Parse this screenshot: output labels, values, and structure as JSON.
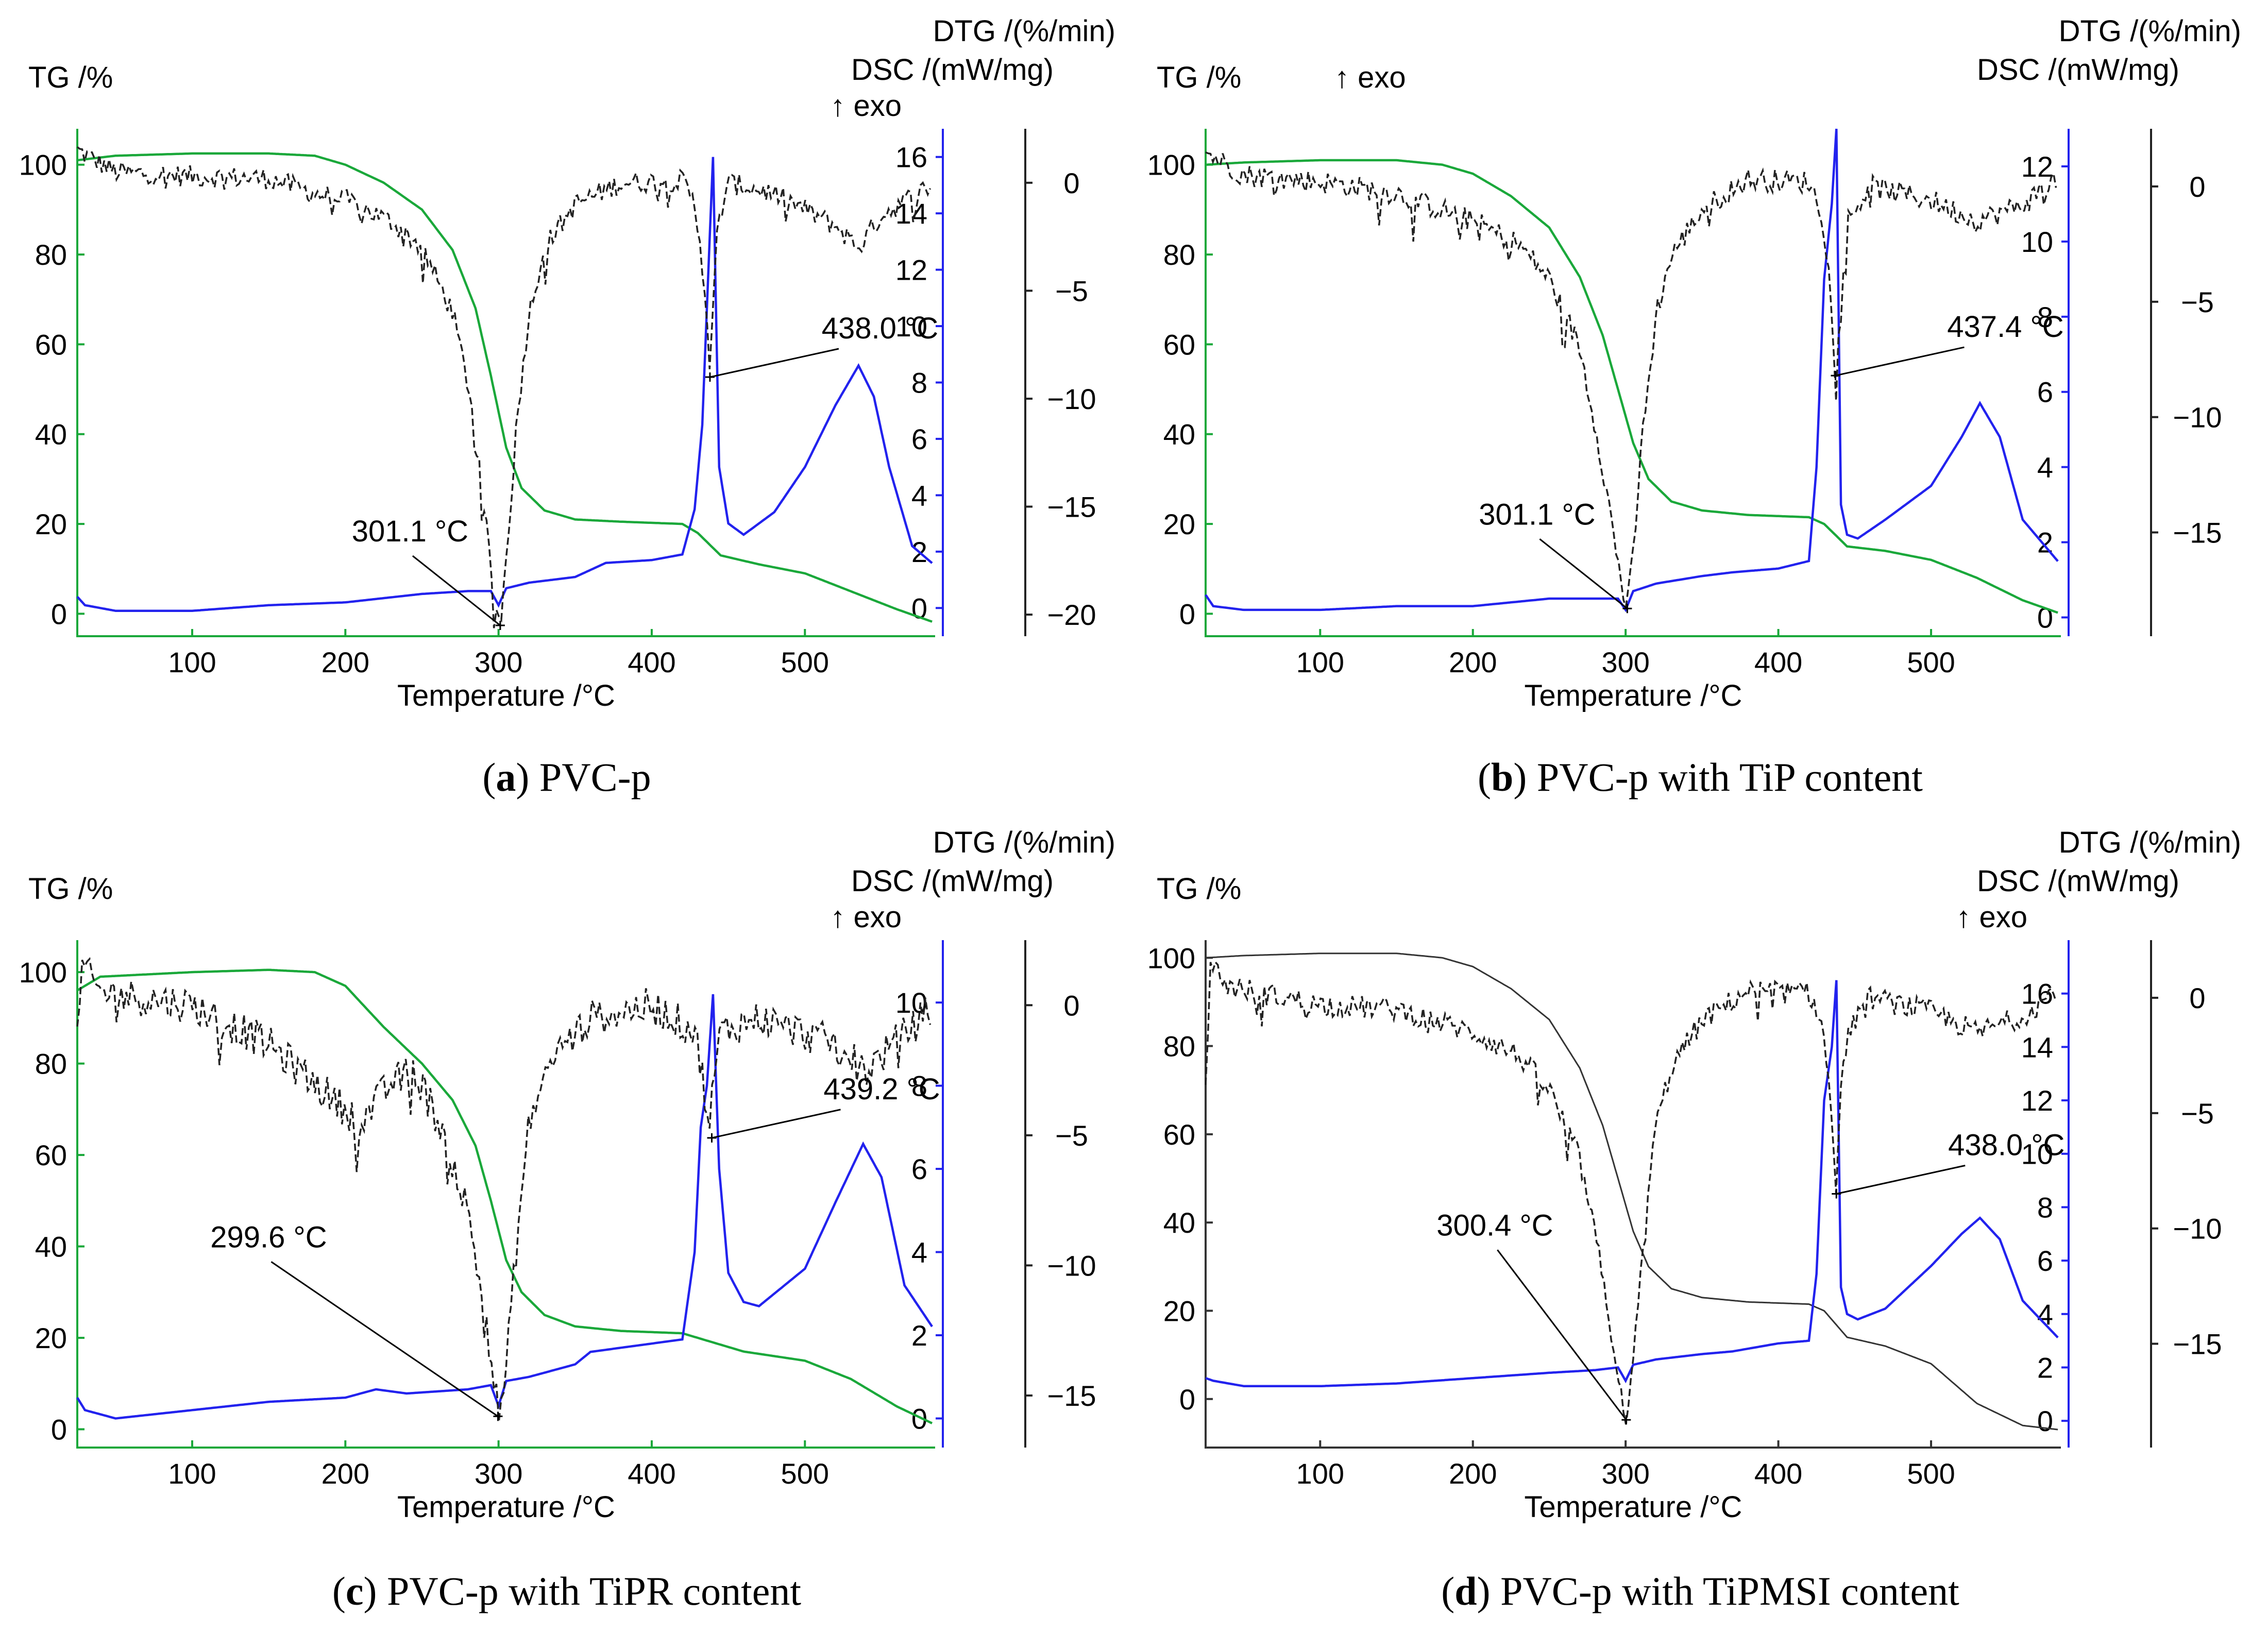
{
  "figure": {
    "panels_meta": "four thermal analysis panels"
  },
  "chart_data": [
    {
      "id": "a",
      "type": "line",
      "caption_letter": "a",
      "caption_text": "PVC-p",
      "title_tg": "TG /%",
      "title_dtg": "DTG /(%/min)",
      "title_dsc": "DSC /(mW/mg)",
      "exo_label": "↑ exo",
      "xlabel": "Temperature /°C",
      "xlim": [
        25,
        585
      ],
      "x_ticks": [
        100,
        200,
        300,
        400,
        500
      ],
      "tg_axis": {
        "ylim": [
          -5,
          108
        ],
        "ticks": [
          0,
          20,
          40,
          60,
          80,
          100
        ]
      },
      "dsc_axis": {
        "ylim": [
          -1,
          17
        ],
        "ticks": [
          0,
          2,
          4,
          6,
          8,
          10,
          12,
          14,
          16
        ]
      },
      "dtg_axis": {
        "ylim": [
          -21,
          2.5
        ],
        "ticks": [
          0,
          -5,
          -10,
          -15,
          -20
        ]
      },
      "tg_color": "#1aa83a",
      "series": [
        {
          "name": "TG",
          "axis": "tg",
          "color": "#1aa83a",
          "style": "solid",
          "x": [
            25,
            50,
            100,
            150,
            180,
            200,
            225,
            250,
            270,
            285,
            295,
            305,
            315,
            330,
            350,
            380,
            420,
            430,
            445,
            470,
            500,
            530,
            560,
            585
          ],
          "y": [
            101,
            102,
            102.5,
            102.5,
            102,
            100,
            96,
            90,
            81,
            68,
            53,
            37,
            28,
            23,
            21,
            20.5,
            20,
            18,
            13,
            11,
            9,
            5,
            1,
            -2
          ]
        },
        {
          "name": "DSC",
          "axis": "dsc",
          "color": "#2222ee",
          "style": "solid",
          "x": [
            25,
            30,
            50,
            100,
            150,
            200,
            250,
            280,
            295,
            300,
            305,
            320,
            350,
            370,
            400,
            420,
            428,
            433,
            437,
            440,
            444,
            450,
            460,
            480,
            500,
            520,
            535,
            545,
            555,
            570,
            585
          ],
          "y": [
            0.4,
            0.1,
            -0.1,
            -0.1,
            0.1,
            0.2,
            0.5,
            0.6,
            0.6,
            0.1,
            0.7,
            0.9,
            1.1,
            1.6,
            1.7,
            1.9,
            3.5,
            6.5,
            12,
            16,
            5,
            3.0,
            2.6,
            3.4,
            5.0,
            7.2,
            8.6,
            7.5,
            5.0,
            2.2,
            1.5
          ]
        },
        {
          "name": "DTG",
          "axis": "dtg",
          "color": "#222222",
          "style": "dashed",
          "noise": 0.5,
          "x": [
            25,
            50,
            100,
            150,
            180,
            200,
            230,
            250,
            270,
            282,
            292,
            298,
            301,
            305,
            312,
            320,
            330,
            350,
            380,
            420,
            428,
            432,
            436,
            438,
            440,
            443,
            450,
            480,
            520,
            535,
            550,
            585
          ],
          "y": [
            1.5,
            0.5,
            0.3,
            0.2,
            -0.5,
            -0.8,
            -1.8,
            -3,
            -6,
            -10,
            -16,
            -19.5,
            -20.5,
            -17.5,
            -11,
            -6,
            -3,
            -1,
            0,
            0.1,
            -1,
            -3,
            -6,
            -9,
            -6,
            -2,
            0,
            -0.5,
            -2,
            -3,
            -1.5,
            0
          ]
        }
      ],
      "annotations": [
        {
          "text": "301.1 °C",
          "x": 301.1,
          "axis": "dtg",
          "y": -20.5
        },
        {
          "text": "438.0 °C",
          "x": 438.0,
          "axis": "dtg",
          "y": -9
        }
      ]
    },
    {
      "id": "b",
      "type": "line",
      "caption_letter": "b",
      "caption_text": "PVC-p with TiP content",
      "title_tg": "TG /%",
      "title_dtg": "DTG /(%/min)",
      "title_dsc": "DSC /(mW/mg)",
      "exo_label": "↑ exo",
      "xlabel": "Temperature /°C",
      "xlim": [
        25,
        585
      ],
      "x_ticks": [
        100,
        200,
        300,
        400,
        500
      ],
      "tg_axis": {
        "ylim": [
          -5,
          108
        ],
        "ticks": [
          0,
          20,
          40,
          60,
          80,
          100
        ]
      },
      "dsc_axis": {
        "ylim": [
          -0.5,
          13
        ],
        "ticks": [
          0,
          2,
          4,
          6,
          8,
          10,
          12
        ]
      },
      "dtg_axis": {
        "ylim": [
          -19.5,
          2.5
        ],
        "ticks": [
          0,
          -5,
          -10,
          -15
        ]
      },
      "tg_color": "#1aa83a",
      "series": [
        {
          "name": "TG",
          "axis": "tg",
          "color": "#1aa83a",
          "style": "solid",
          "x": [
            25,
            50,
            100,
            150,
            180,
            200,
            225,
            250,
            270,
            285,
            295,
            305,
            315,
            330,
            350,
            380,
            420,
            430,
            445,
            470,
            500,
            530,
            560,
            585
          ],
          "y": [
            100,
            100.5,
            101,
            101,
            100,
            98,
            93,
            86,
            75,
            62,
            50,
            38,
            30,
            25,
            23,
            22,
            21.5,
            20,
            15,
            14,
            12,
            8,
            3,
            0
          ]
        },
        {
          "name": "DSC",
          "axis": "dsc",
          "color": "#2222ee",
          "style": "solid",
          "x": [
            25,
            30,
            50,
            100,
            150,
            200,
            250,
            280,
            295,
            300,
            305,
            320,
            350,
            370,
            400,
            420,
            425,
            430,
            435,
            438,
            441,
            445,
            452,
            470,
            500,
            520,
            532,
            545,
            560,
            585
          ],
          "y": [
            0.6,
            0.3,
            0.2,
            0.2,
            0.3,
            0.3,
            0.5,
            0.5,
            0.5,
            0.2,
            0.7,
            0.9,
            1.1,
            1.2,
            1.3,
            1.5,
            4.0,
            9.0,
            11,
            13,
            3.0,
            2.2,
            2.1,
            2.6,
            3.5,
            4.8,
            5.7,
            4.8,
            2.6,
            1.4
          ]
        },
        {
          "name": "DTG",
          "axis": "dtg",
          "color": "#222222",
          "style": "dashed",
          "noise": 0.5,
          "x": [
            25,
            50,
            100,
            150,
            200,
            230,
            250,
            270,
            282,
            292,
            298,
            301,
            305,
            312,
            320,
            330,
            350,
            380,
            420,
            428,
            432,
            436,
            438,
            440,
            445,
            460,
            500,
            530,
            560,
            585
          ],
          "y": [
            1.5,
            0.5,
            0.2,
            -0.3,
            -1.5,
            -2.5,
            -4,
            -7,
            -11,
            -15,
            -17.5,
            -18.3,
            -16,
            -10,
            -5.5,
            -3,
            -1,
            0.3,
            0.2,
            -1,
            -3,
            -6,
            -8.2,
            -5,
            -1.5,
            0,
            -0.6,
            -1.5,
            -0.8,
            0.5
          ]
        }
      ],
      "annotations": [
        {
          "text": "301.1 °C",
          "x": 301.1,
          "axis": "dtg",
          "y": -18.3
        },
        {
          "text": "437.4 °C",
          "x": 437.4,
          "axis": "dtg",
          "y": -8.2
        }
      ]
    },
    {
      "id": "c",
      "type": "line",
      "caption_letter": "c",
      "caption_text": "PVC-p with TiPR content",
      "title_tg": "TG /%",
      "title_dtg": "DTG /(%/min)",
      "title_dsc": "DSC /(mW/mg)",
      "exo_label": "↑ exo",
      "xlabel": "Temperature /°C",
      "xlim": [
        25,
        585
      ],
      "x_ticks": [
        100,
        200,
        300,
        400,
        500
      ],
      "tg_axis": {
        "ylim": [
          -4,
          107
        ],
        "ticks": [
          0,
          20,
          40,
          60,
          80,
          100
        ]
      },
      "dsc_axis": {
        "ylim": [
          -0.7,
          11.5
        ],
        "ticks": [
          0,
          2,
          4,
          6,
          8,
          10
        ]
      },
      "dtg_axis": {
        "ylim": [
          -17,
          2.5
        ],
        "ticks": [
          0,
          -5,
          -10,
          -15
        ]
      },
      "tg_color": "#1aa83a",
      "series": [
        {
          "name": "TG",
          "axis": "tg",
          "color": "#1aa83a",
          "style": "solid",
          "x": [
            25,
            40,
            100,
            150,
            180,
            200,
            225,
            250,
            270,
            285,
            295,
            305,
            315,
            330,
            350,
            380,
            420,
            440,
            460,
            500,
            530,
            560,
            585
          ],
          "y": [
            96,
            99,
            100,
            100.5,
            100,
            97,
            88,
            80,
            72,
            62,
            50,
            37,
            30,
            25,
            22.5,
            21.5,
            21,
            19,
            17,
            15,
            11,
            5,
            1
          ]
        },
        {
          "name": "DSC",
          "axis": "dsc",
          "color": "#2222ee",
          "style": "solid",
          "x": [
            25,
            30,
            50,
            100,
            150,
            200,
            220,
            240,
            280,
            295,
            300,
            305,
            320,
            350,
            360,
            380,
            420,
            428,
            432,
            436,
            440,
            444,
            450,
            460,
            470,
            500,
            520,
            538,
            550,
            565,
            585
          ],
          "y": [
            0.5,
            0.2,
            0.0,
            0.2,
            0.4,
            0.5,
            0.7,
            0.6,
            0.7,
            0.8,
            0.3,
            0.9,
            1.0,
            1.3,
            1.6,
            1.7,
            1.9,
            4.0,
            7.0,
            8.0,
            10.2,
            6.0,
            3.5,
            2.8,
            2.7,
            3.6,
            5.2,
            6.6,
            5.8,
            3.2,
            2.1
          ]
        },
        {
          "name": "DTG",
          "axis": "dtg",
          "color": "#222222",
          "style": "dashed",
          "noise": 0.7,
          "x": [
            25,
            28,
            40,
            100,
            150,
            190,
            210,
            230,
            245,
            265,
            280,
            292,
            298,
            301,
            305,
            312,
            320,
            335,
            360,
            400,
            428,
            434,
            438,
            440,
            445,
            470,
            520,
            540,
            585
          ],
          "y": [
            -1.5,
            1.5,
            0.5,
            0.0,
            -1.5,
            -3.5,
            -4.5,
            -3.0,
            -2.5,
            -5,
            -8,
            -12,
            -15,
            -15.8,
            -14,
            -9,
            -4.5,
            -2,
            -0.5,
            0,
            -1,
            -3,
            -5,
            -3,
            -1,
            -0.5,
            -1.5,
            -2.5,
            0
          ]
        }
      ],
      "annotations": [
        {
          "text": "299.6 °C",
          "x": 299.6,
          "axis": "dtg",
          "y": -15.8
        },
        {
          "text": "439.2 °C",
          "x": 439.2,
          "axis": "dtg",
          "y": -5.1
        }
      ]
    },
    {
      "id": "d",
      "type": "line",
      "caption_letter": "d",
      "caption_text": "PVC-p with TiPMSI content",
      "title_tg": "TG /%",
      "title_dtg": "DTG /(%/min)",
      "title_dsc": "DSC /(mW/mg)",
      "exo_label": "↑ exo",
      "xlabel": "Temperature /°C",
      "xlim": [
        25,
        585
      ],
      "x_ticks": [
        100,
        200,
        300,
        400,
        500
      ],
      "tg_axis": {
        "ylim": [
          -11,
          104
        ],
        "ticks": [
          0,
          20,
          40,
          60,
          80,
          100
        ]
      },
      "dsc_axis": {
        "ylim": [
          -1,
          18
        ],
        "ticks": [
          0,
          2,
          4,
          6,
          8,
          10,
          12,
          14,
          16
        ]
      },
      "dtg_axis": {
        "ylim": [
          -19.5,
          2.5
        ],
        "ticks": [
          0,
          -5,
          -10,
          -15
        ]
      },
      "tg_color": "#333333",
      "series": [
        {
          "name": "TG",
          "axis": "tg",
          "color": "#333333",
          "style": "thin",
          "x": [
            25,
            50,
            100,
            150,
            180,
            200,
            225,
            250,
            270,
            285,
            295,
            305,
            315,
            330,
            350,
            380,
            420,
            430,
            445,
            470,
            500,
            530,
            560,
            585
          ],
          "y": [
            100,
            100.5,
            101,
            101,
            100,
            98,
            93,
            86,
            75,
            62,
            50,
            38,
            30,
            25,
            23,
            22,
            21.5,
            20,
            14,
            12,
            8,
            -1,
            -6,
            -7
          ]
        },
        {
          "name": "DSC",
          "axis": "dsc",
          "color": "#2222ee",
          "style": "solid",
          "x": [
            25,
            30,
            50,
            100,
            150,
            200,
            250,
            280,
            295,
            300,
            305,
            320,
            350,
            370,
            400,
            420,
            425,
            430,
            435,
            438,
            441,
            445,
            452,
            470,
            500,
            520,
            532,
            545,
            560,
            585
          ],
          "y": [
            1.6,
            1.5,
            1.3,
            1.3,
            1.4,
            1.6,
            1.8,
            1.9,
            2.0,
            1.5,
            2.1,
            2.3,
            2.5,
            2.6,
            2.9,
            3.0,
            5.5,
            12,
            14,
            16.5,
            5.0,
            4.0,
            3.8,
            4.2,
            5.8,
            7.0,
            7.6,
            6.8,
            4.5,
            3.0
          ]
        },
        {
          "name": "DTG",
          "axis": "dtg",
          "color": "#222222",
          "style": "dashed",
          "noise": 0.5,
          "x": [
            25,
            28,
            40,
            100,
            150,
            200,
            230,
            250,
            270,
            282,
            292,
            298,
            301,
            305,
            312,
            320,
            330,
            350,
            380,
            420,
            428,
            432,
            436,
            438,
            440,
            445,
            460,
            500,
            530,
            560,
            585
          ],
          "y": [
            -4,
            1.5,
            0.5,
            -0.3,
            -0.5,
            -1.5,
            -2.5,
            -4,
            -7,
            -11,
            -15,
            -17.5,
            -18.3,
            -16,
            -10,
            -5.5,
            -3,
            -1,
            0.3,
            0.2,
            -1,
            -3,
            -6,
            -8.5,
            -5,
            -1.5,
            0,
            -0.6,
            -1.5,
            -0.8,
            0.5
          ]
        }
      ],
      "annotations": [
        {
          "text": "300.4 °C",
          "x": 300.4,
          "axis": "dtg",
          "y": -18.3
        },
        {
          "text": "438.0 °C",
          "x": 438.0,
          "axis": "dtg",
          "y": -8.5
        }
      ]
    }
  ]
}
